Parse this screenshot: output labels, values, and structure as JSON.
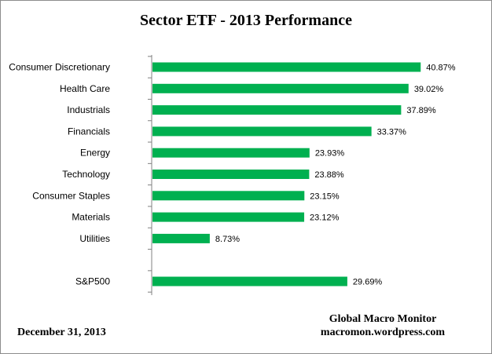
{
  "chart_data": {
    "type": "bar",
    "orientation": "horizontal",
    "title": "Sector ETF - 2013  Performance",
    "categories": [
      "Consumer Discretionary",
      "Health Care",
      "Industrials",
      "Financials",
      "Energy",
      "Technology",
      "Consumer Staples",
      "Materials",
      "Utilities",
      "",
      "S&P500"
    ],
    "values": [
      40.87,
      39.02,
      37.89,
      33.37,
      23.93,
      23.88,
      23.15,
      23.12,
      8.73,
      null,
      29.69
    ],
    "value_labels": [
      "40.87%",
      "39.02%",
      "37.89%",
      "33.37%",
      "23.93%",
      "23.88%",
      "23.15%",
      "23.12%",
      "8.73%",
      "",
      "29.69%"
    ],
    "xlim": [
      0,
      50
    ],
    "bar_color": "#00b050",
    "grid": false,
    "legend": "none"
  },
  "footer": {
    "date": "December 31, 2013",
    "source_name": "Global Macro Monitor",
    "source_url": "macromon.wordpress.com"
  }
}
